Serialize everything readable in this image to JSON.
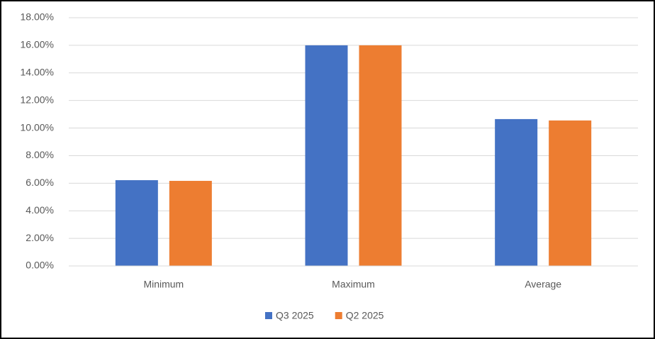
{
  "chart_data": {
    "type": "bar",
    "categories": [
      "Minimum",
      "Maximum",
      "Average"
    ],
    "series": [
      {
        "name": "Q3 2025",
        "color": "#4472c4",
        "values": [
          6.22,
          16.0,
          10.65
        ]
      },
      {
        "name": "Q2 2025",
        "color": "#ed7d31",
        "values": [
          6.17,
          16.0,
          10.55
        ]
      }
    ],
    "ylim": [
      0,
      18
    ],
    "yticks": [
      {
        "value": 0,
        "label": "0.00%"
      },
      {
        "value": 2,
        "label": "2.00%"
      },
      {
        "value": 4,
        "label": "4.00%"
      },
      {
        "value": 6,
        "label": "6.00%"
      },
      {
        "value": 8,
        "label": "8.00%"
      },
      {
        "value": 10,
        "label": "10.00%"
      },
      {
        "value": 12,
        "label": "12.00%"
      },
      {
        "value": 14,
        "label": "14.00%"
      },
      {
        "value": 16,
        "label": "16.00%"
      },
      {
        "value": 18,
        "label": "18.00%"
      }
    ],
    "grid": true,
    "legend": "bottom"
  }
}
